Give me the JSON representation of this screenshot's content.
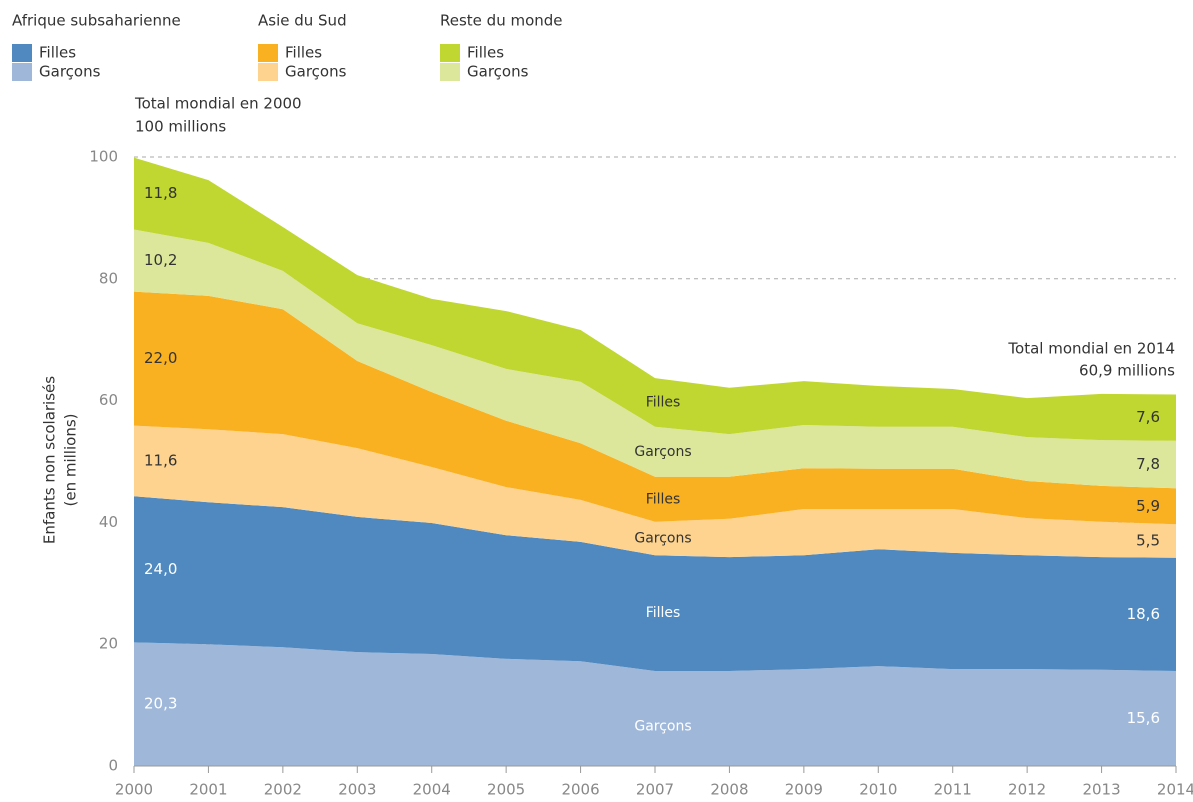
{
  "chart_data": {
    "type": "stacked_area",
    "annotations": [
      "Total mondial en 2000",
      "100 millions",
      "Total mondial en 2014",
      "60,9 millions"
    ],
    "ylabel": [
      "Enfants non scolarisés",
      "(en millions)"
    ],
    "x": [
      2000,
      2001,
      2002,
      2003,
      2004,
      2005,
      2006,
      2007,
      2008,
      2009,
      2010,
      2011,
      2012,
      2013,
      2014
    ],
    "xlim": [
      2000,
      2014
    ],
    "xticks": [
      2000,
      2001,
      2002,
      2003,
      2004,
      2005,
      2006,
      2007,
      2008,
      2009,
      2010,
      2011,
      2012,
      2013,
      2014
    ],
    "ylim": [
      0,
      100
    ],
    "yticks": [
      0,
      20,
      40,
      60,
      80,
      100
    ],
    "grid": true,
    "series": [
      {
        "region": "Afrique subsaharienne",
        "name": "Garçons",
        "color": "#9fb8da",
        "values": [
          20.3,
          20.0,
          19.5,
          18.7,
          18.4,
          17.6,
          17.2,
          15.6,
          15.6,
          15.9,
          16.4,
          15.9,
          15.9,
          15.8,
          15.6
        ],
        "value_labels": [
          "20,3",
          null,
          null,
          null,
          null,
          null,
          null,
          null,
          null,
          null,
          null,
          null,
          null,
          null,
          "15,6"
        ]
      },
      {
        "region": "Afrique subsaharienne",
        "name": "Filles",
        "color": "#4f89c0",
        "values": [
          24.0,
          23.3,
          23.0,
          22.2,
          21.5,
          20.3,
          19.6,
          19.0,
          18.7,
          18.7,
          19.2,
          19.1,
          18.7,
          18.5,
          18.6
        ],
        "value_labels": [
          "24,0",
          null,
          null,
          null,
          null,
          null,
          null,
          null,
          null,
          null,
          null,
          null,
          null,
          null,
          "18,6"
        ]
      },
      {
        "region": "Asie du Sud",
        "name": "Garçons",
        "color": "#fdd38f",
        "values": [
          11.6,
          12.0,
          12.0,
          11.3,
          9.2,
          7.9,
          6.9,
          5.5,
          6.3,
          7.6,
          6.6,
          7.2,
          6.1,
          5.8,
          5.5
        ],
        "value_labels": [
          "11,6",
          null,
          null,
          null,
          null,
          null,
          null,
          null,
          null,
          null,
          null,
          null,
          null,
          null,
          "5,5"
        ]
      },
      {
        "region": "Asie du Sud",
        "name": "Filles",
        "color": "#f9b122",
        "values": [
          22.0,
          21.9,
          20.5,
          14.3,
          12.3,
          10.9,
          9.3,
          7.4,
          6.9,
          6.7,
          6.6,
          6.6,
          6.1,
          5.9,
          5.9
        ],
        "value_labels": [
          "22,0",
          null,
          null,
          null,
          null,
          null,
          null,
          null,
          null,
          null,
          null,
          null,
          null,
          null,
          "5,9"
        ]
      },
      {
        "region": "Reste du monde",
        "name": "Garçons",
        "color": "#dce79c",
        "values": [
          10.2,
          8.7,
          6.3,
          6.2,
          7.7,
          8.5,
          10.1,
          8.2,
          7.0,
          7.1,
          6.9,
          6.9,
          7.2,
          7.5,
          7.8
        ],
        "value_labels": [
          "10,2",
          null,
          null,
          null,
          null,
          null,
          null,
          null,
          null,
          null,
          null,
          null,
          null,
          null,
          "7,8"
        ]
      },
      {
        "region": "Reste du monde",
        "name": "Filles",
        "color": "#c0d631",
        "values": [
          11.8,
          10.3,
          7.2,
          7.9,
          7.6,
          9.5,
          8.5,
          8.0,
          7.6,
          7.2,
          6.7,
          6.2,
          6.4,
          7.6,
          7.6
        ],
        "value_labels": [
          "11,8",
          null,
          null,
          null,
          null,
          null,
          null,
          null,
          null,
          null,
          null,
          null,
          null,
          null,
          "7,6"
        ]
      }
    ]
  }
}
